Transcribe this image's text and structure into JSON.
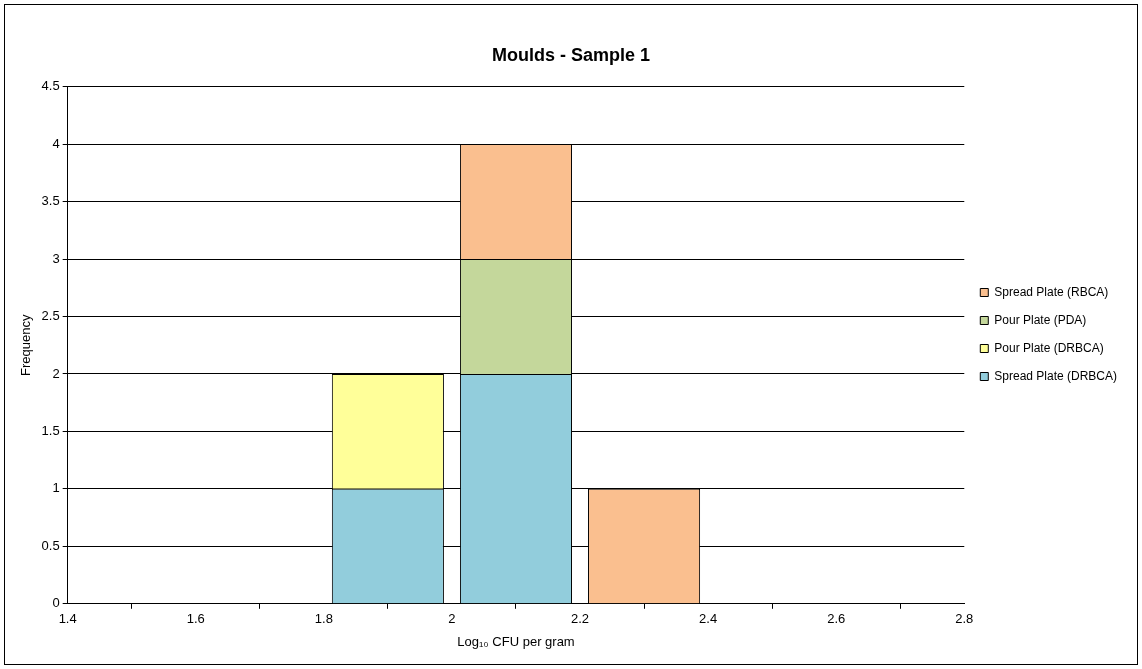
{
  "chart_data": {
    "type": "bar",
    "title": "Moulds - Sample 1",
    "xlabel": "Log₁₀ CFU per gram",
    "ylabel": "Frequency",
    "x": [
      1.9,
      2.1,
      2.3
    ],
    "stacked": true,
    "series": [
      {
        "name": "Spread Plate (DRBCA)",
        "color": "#92cddc",
        "values": [
          1,
          2,
          null
        ]
      },
      {
        "name": "Pour Plate (DRBCA)",
        "color": "#ffff99",
        "values": [
          1,
          null,
          null
        ]
      },
      {
        "name": "Pour Plate (PDA)",
        "color": "#c4d79b",
        "values": [
          null,
          1,
          null
        ]
      },
      {
        "name": "Spread Plate (RBCA)",
        "color": "#fabf8f",
        "values": [
          null,
          1,
          1
        ]
      }
    ],
    "xlim": [
      1.4,
      2.8
    ],
    "xticks": [
      1.4,
      1.6,
      1.8,
      2,
      2.2,
      2.4,
      2.6,
      2.8
    ],
    "ylim": [
      0,
      4.5
    ],
    "yticks": [
      0,
      0.5,
      1,
      1.5,
      2,
      2.5,
      3,
      3.5,
      4,
      4.5
    ],
    "grid": "y",
    "legend": "right"
  }
}
